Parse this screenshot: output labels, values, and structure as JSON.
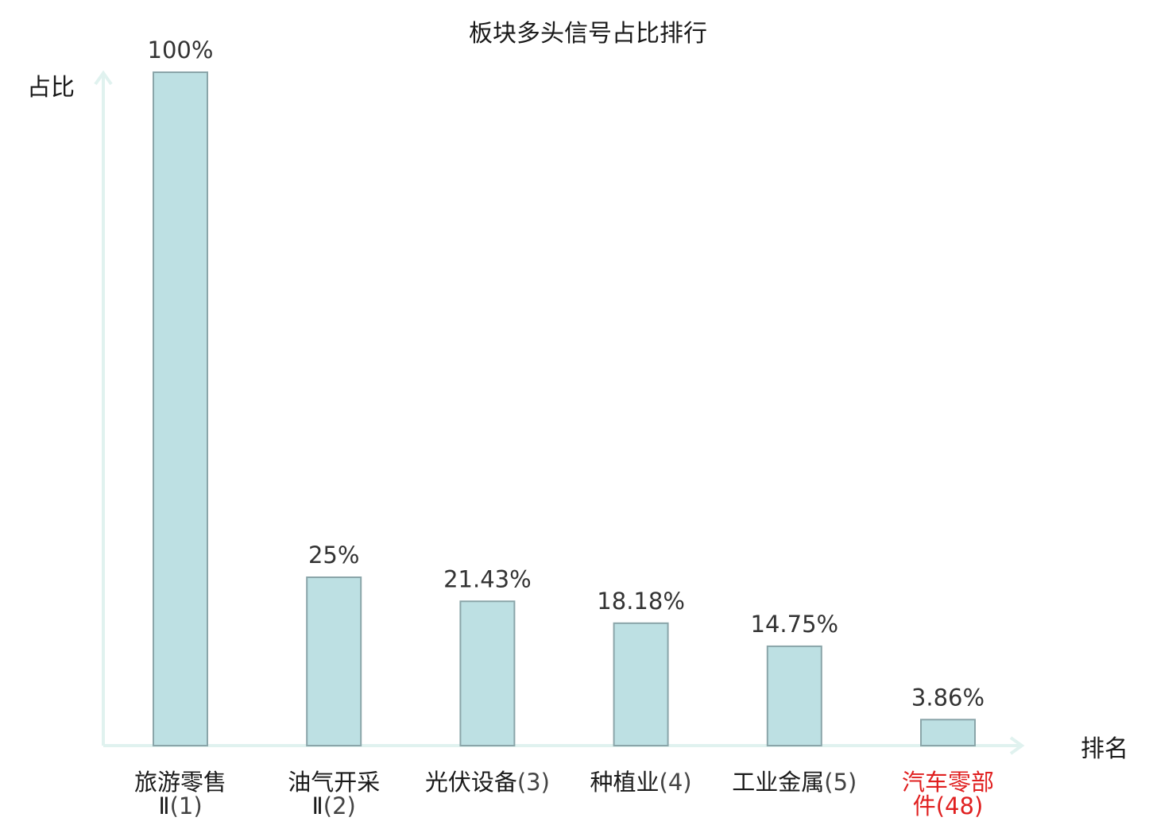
{
  "chart_data": {
    "type": "bar",
    "title": "板块多头信号占比排行",
    "ylabel": "占比",
    "xlabel": "排名",
    "ylim": [
      0,
      100
    ],
    "grid": false,
    "categories": [
      {
        "name_lines": [
          "旅游零售",
          "Ⅱ"
        ],
        "rank": "(1)",
        "highlight": false
      },
      {
        "name_lines": [
          "油气开采",
          "Ⅱ"
        ],
        "rank": "(2)",
        "highlight": false
      },
      {
        "name_lines": [
          "光伏设备"
        ],
        "rank": "(3)",
        "highlight": false
      },
      {
        "name_lines": [
          "种植业"
        ],
        "rank": "(4)",
        "highlight": false
      },
      {
        "name_lines": [
          "工业金属"
        ],
        "rank": "(5)",
        "highlight": false
      },
      {
        "name_lines": [
          "汽车零部",
          "件"
        ],
        "rank": "(48)",
        "highlight": true
      }
    ],
    "values": [
      100,
      25,
      21.43,
      18.18,
      14.75,
      3.86
    ],
    "value_labels": [
      "100%",
      "25%",
      "21.43%",
      "18.18%",
      "14.75%",
      "3.86%"
    ]
  },
  "colors": {
    "bar_fill": "#bde0e3",
    "bar_stroke": "#8aa5a9",
    "axis": "#e0f2ef",
    "text": "#1a1a1a",
    "value_text": "#333333",
    "rank_text": "#444444",
    "highlight": "#e02020"
  }
}
